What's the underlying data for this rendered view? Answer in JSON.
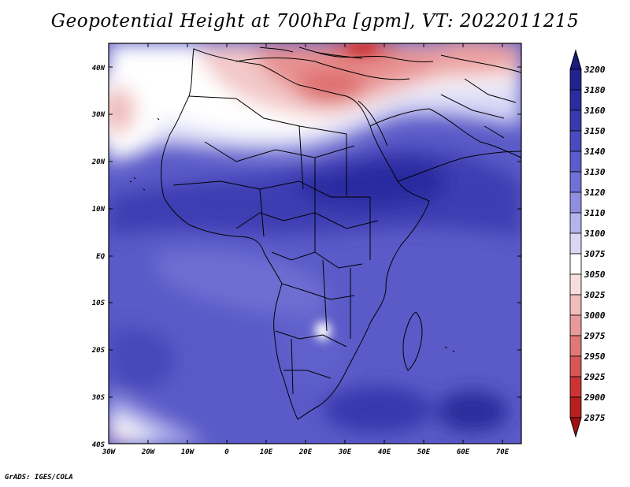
{
  "title": "Geopotential Height at 700hPa [gpm], VT: 2022011215",
  "credit": "GrADS: IGES/COLA",
  "map": {
    "lat_labels": [
      "40N",
      "30N",
      "20N",
      "10N",
      "EQ",
      "10S",
      "20S",
      "30S",
      "40S"
    ],
    "lon_labels": [
      "30W",
      "20W",
      "10W",
      "0",
      "10E",
      "20E",
      "30E",
      "40E",
      "50E",
      "60E",
      "70E"
    ]
  },
  "colorbar": {
    "levels": [
      "3200",
      "3180",
      "3160",
      "3150",
      "3140",
      "3130",
      "3120",
      "3110",
      "3100",
      "3075",
      "3050",
      "3025",
      "3000",
      "2975",
      "2950",
      "2925",
      "2900",
      "2875"
    ],
    "colors": [
      "#1a1a80",
      "#22228f",
      "#2c2ca0",
      "#3a3ab0",
      "#4a4ac0",
      "#5c5ccc",
      "#7070d6",
      "#8f8fe0",
      "#b4b4ec",
      "#d8d8f6",
      "#ffffff",
      "#f7dede",
      "#f0bcbc",
      "#e89a9a",
      "#e07878",
      "#d85656",
      "#cc3434",
      "#b82020",
      "#a01212"
    ]
  }
}
